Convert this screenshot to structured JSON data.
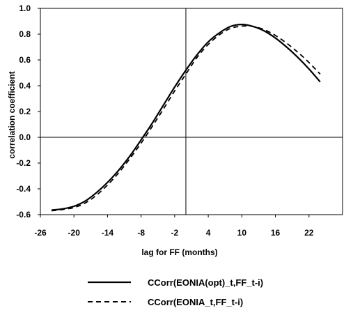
{
  "chart_data": {
    "type": "line",
    "xlabel": "lag for FF (months)",
    "ylabel": "correlation coefficient",
    "xlim": [
      -26,
      28
    ],
    "ylim": [
      -0.6,
      1.0
    ],
    "xticks": [
      -26,
      -20,
      -14,
      -8,
      -2,
      4,
      10,
      16,
      22
    ],
    "yticks": [
      -0.6,
      -0.4,
      -0.2,
      0.0,
      0.2,
      0.4,
      0.6,
      0.8,
      1.0
    ],
    "ytick_labels": [
      "-0.6",
      "-0.4",
      "-0.2",
      "0.0",
      "0.2",
      "0.4",
      "0.6",
      "0.8",
      "1.0"
    ],
    "reference_lines": {
      "x": 0,
      "y": 0
    },
    "grid": false,
    "legend_position": "bottom",
    "series": [
      {
        "name": "CCorr(EONIA(opt)_t,FF_t-i)",
        "line_style": "solid",
        "color": "#000000",
        "x": [
          -24,
          -22,
          -20,
          -18,
          -16,
          -14,
          -12,
          -10,
          -8,
          -6,
          -4,
          -2,
          0,
          2,
          4,
          6,
          8,
          10,
          12,
          14,
          16,
          18,
          20,
          22,
          24
        ],
        "y": [
          -0.565,
          -0.555,
          -0.535,
          -0.495,
          -0.43,
          -0.35,
          -0.255,
          -0.145,
          -0.02,
          0.11,
          0.25,
          0.39,
          0.52,
          0.64,
          0.74,
          0.81,
          0.86,
          0.875,
          0.86,
          0.825,
          0.77,
          0.7,
          0.62,
          0.53,
          0.43
        ]
      },
      {
        "name": "CCorr(EONIA_t,FF_t-i)",
        "line_style": "dashed",
        "color": "#000000",
        "x": [
          -24,
          -22,
          -20,
          -18,
          -16,
          -14,
          -12,
          -10,
          -8,
          -6,
          -4,
          -2,
          0,
          2,
          4,
          6,
          8,
          10,
          12,
          14,
          16,
          18,
          20,
          22,
          24
        ],
        "y": [
          -0.57,
          -0.56,
          -0.545,
          -0.51,
          -0.45,
          -0.37,
          -0.275,
          -0.165,
          -0.045,
          0.085,
          0.22,
          0.36,
          0.49,
          0.62,
          0.72,
          0.795,
          0.845,
          0.862,
          0.86,
          0.835,
          0.79,
          0.73,
          0.66,
          0.58,
          0.49
        ]
      }
    ]
  }
}
